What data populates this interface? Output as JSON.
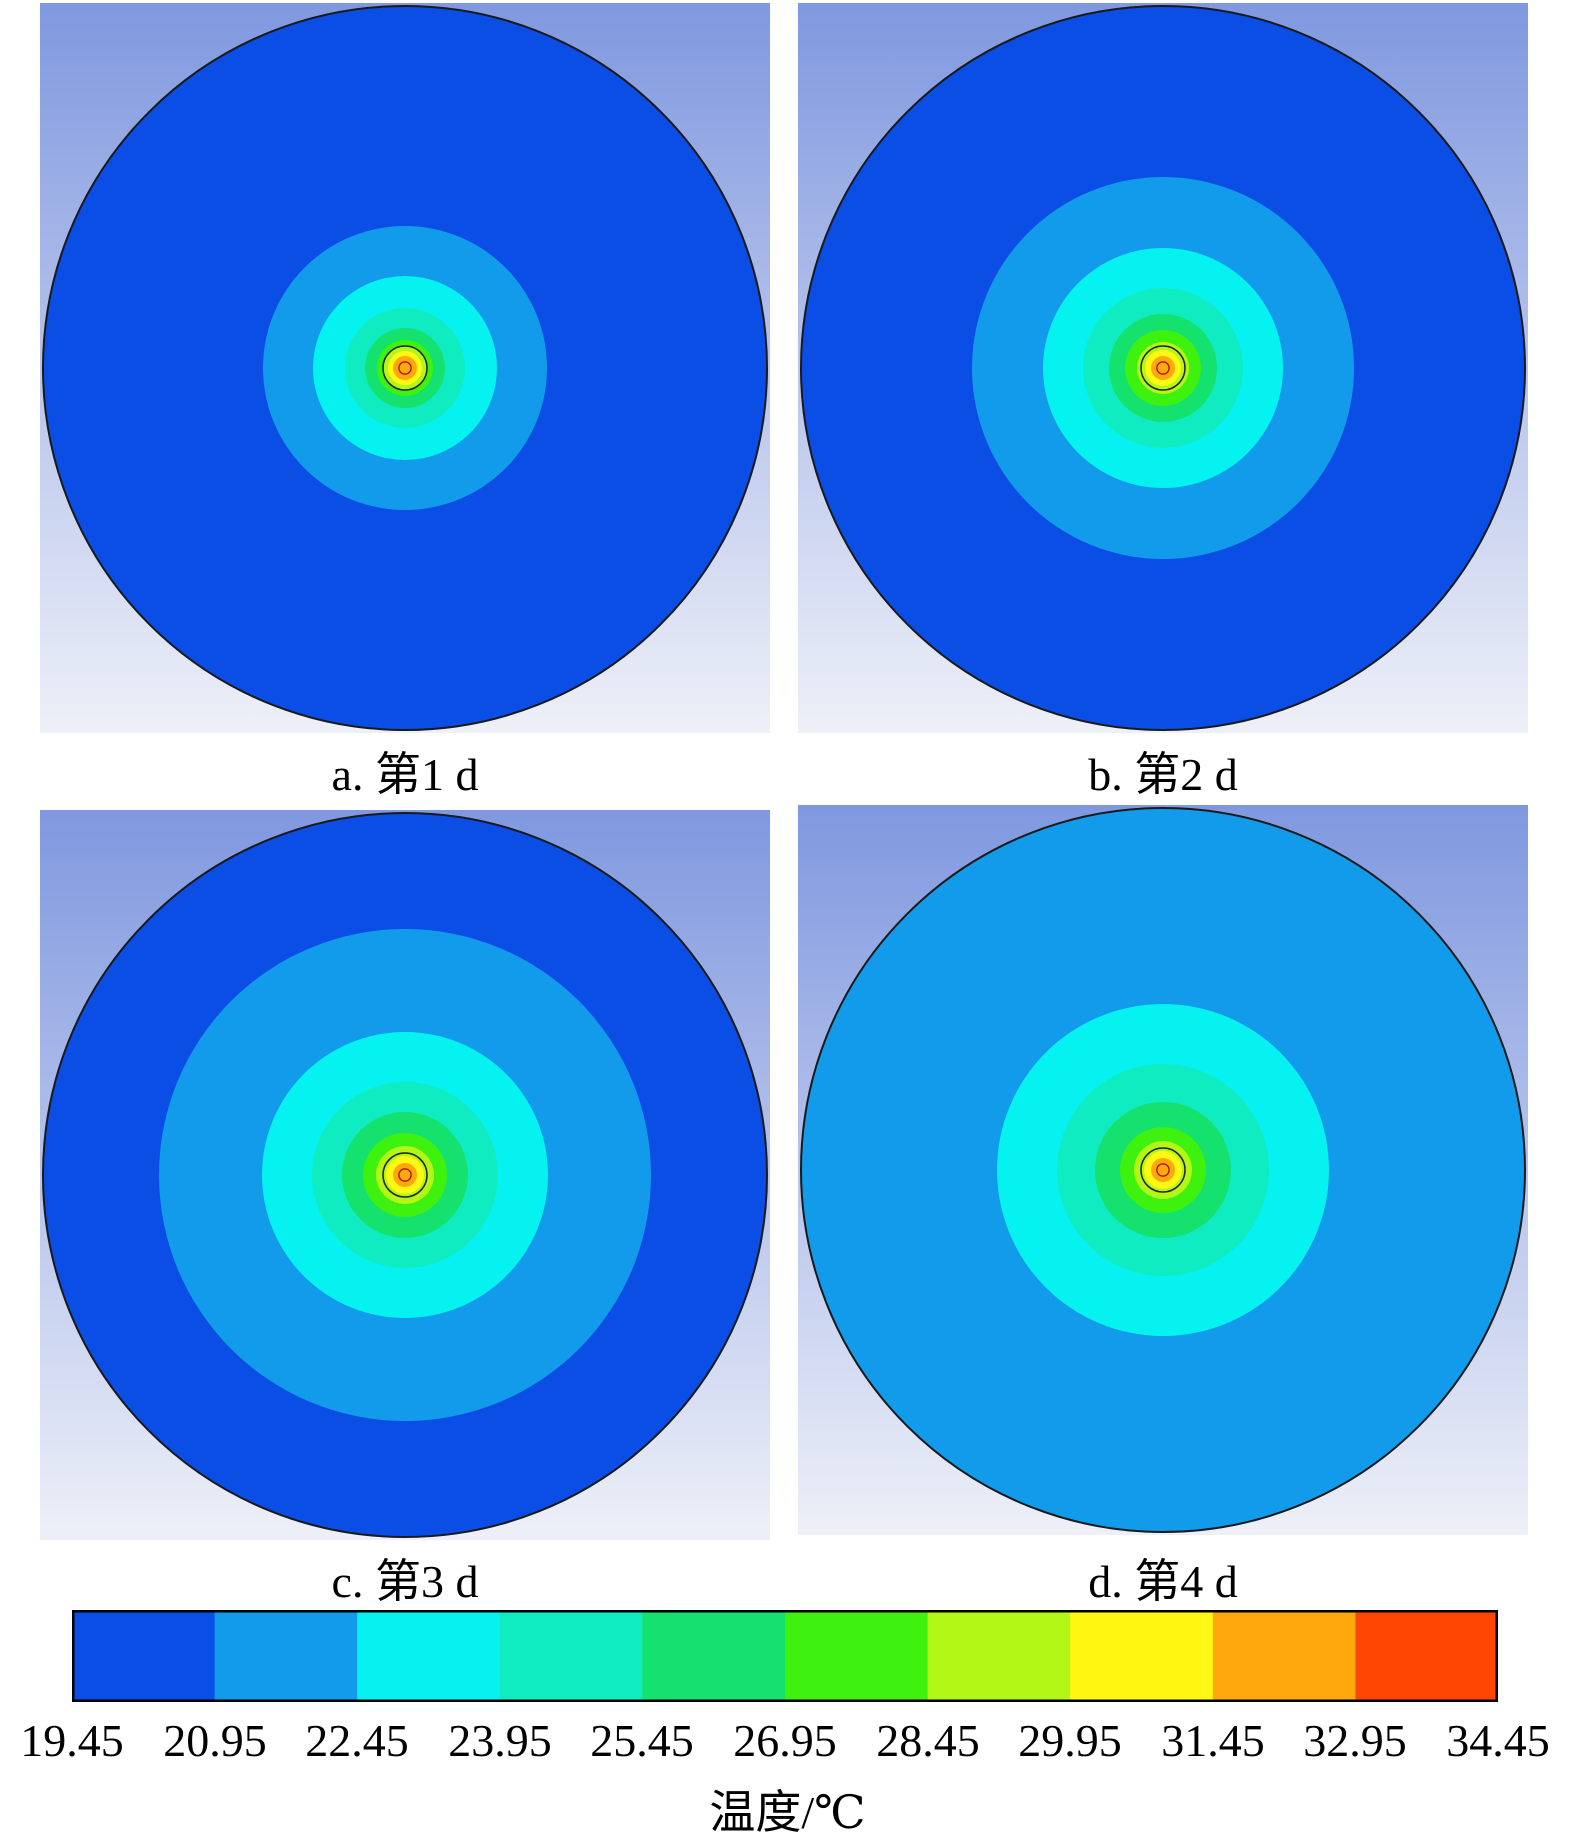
{
  "palette": [
    "#0a4ee6",
    "#129aeb",
    "#06f2f0",
    "#10ecc2",
    "#14e16e",
    "#3ef10f",
    "#b2f716",
    "#fff812",
    "#ffa80d",
    "#ff4703"
  ],
  "background": {
    "top": "#7f98df",
    "bottom": "#eef0f8"
  },
  "panels": [
    {
      "id": "a",
      "caption": "a. 第1 d",
      "bands": [
        0,
        1,
        2,
        3,
        4,
        5,
        6,
        7,
        8,
        9
      ]
    },
    {
      "id": "b",
      "caption": "b. 第2 d",
      "bands": [
        0,
        1,
        2,
        3,
        4,
        5,
        6,
        7,
        8,
        9
      ]
    },
    {
      "id": "c",
      "caption": "c. 第3 d",
      "bands": [
        0,
        1,
        2,
        3,
        4,
        5,
        6,
        7,
        8,
        9
      ]
    },
    {
      "id": "d",
      "caption": "d. 第4 d",
      "bands": [
        1,
        2,
        3,
        4,
        5,
        6,
        7,
        8,
        9
      ]
    }
  ],
  "colorbar": {
    "ticks": [
      "19.45",
      "20.95",
      "22.45",
      "23.95",
      "25.45",
      "26.95",
      "28.45",
      "29.95",
      "31.45",
      "32.95",
      "34.45"
    ]
  },
  "unit_label": "温度/℃"
}
